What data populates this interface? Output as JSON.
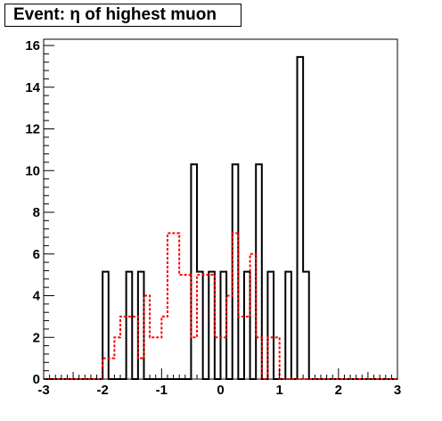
{
  "chart_data": {
    "type": "histogram",
    "title": "Event: η of highest muon",
    "xlabel": "",
    "ylabel": "",
    "xlim": [
      -3,
      3
    ],
    "ylim": [
      0,
      16.3
    ],
    "grid": false,
    "x_ticks": [
      "-3",
      "-2",
      "-1",
      "0",
      "1",
      "2",
      "3"
    ],
    "y_ticks": [
      "0",
      "2",
      "4",
      "6",
      "8",
      "10",
      "12",
      "14",
      "16"
    ],
    "bin_width": 0.1,
    "bin_start": -3.0,
    "series": [
      {
        "style": "solid",
        "color": "#000000",
        "values": [
          0,
          0,
          0,
          0,
          0,
          0,
          0,
          0,
          0,
          0,
          5.15,
          0,
          0,
          0,
          5.15,
          0,
          5.15,
          0,
          0,
          0,
          0,
          0,
          0,
          0,
          0,
          10.3,
          5.15,
          0,
          5.15,
          0,
          5.15,
          0,
          10.3,
          0,
          5.15,
          0,
          10.3,
          0,
          5.15,
          0,
          0,
          5.15,
          0,
          15.45,
          5.15,
          0,
          0,
          0,
          0,
          0,
          0,
          0,
          0,
          0,
          0,
          0,
          0,
          0,
          0,
          0
        ]
      },
      {
        "style": "dashed",
        "color": "#ff0000",
        "values": [
          0,
          0,
          0,
          0,
          0,
          0,
          0,
          0,
          0,
          0,
          1,
          1,
          2,
          3,
          3,
          3,
          1,
          4,
          2,
          2,
          3,
          7,
          7,
          5,
          5,
          2,
          5,
          5,
          5,
          2,
          2,
          4,
          7,
          3,
          3,
          6,
          2,
          0,
          2,
          2,
          0,
          0,
          0,
          0,
          0,
          0,
          0,
          0,
          0,
          0,
          0,
          0,
          0,
          0,
          0,
          0,
          0,
          0,
          0,
          0
        ]
      }
    ]
  }
}
